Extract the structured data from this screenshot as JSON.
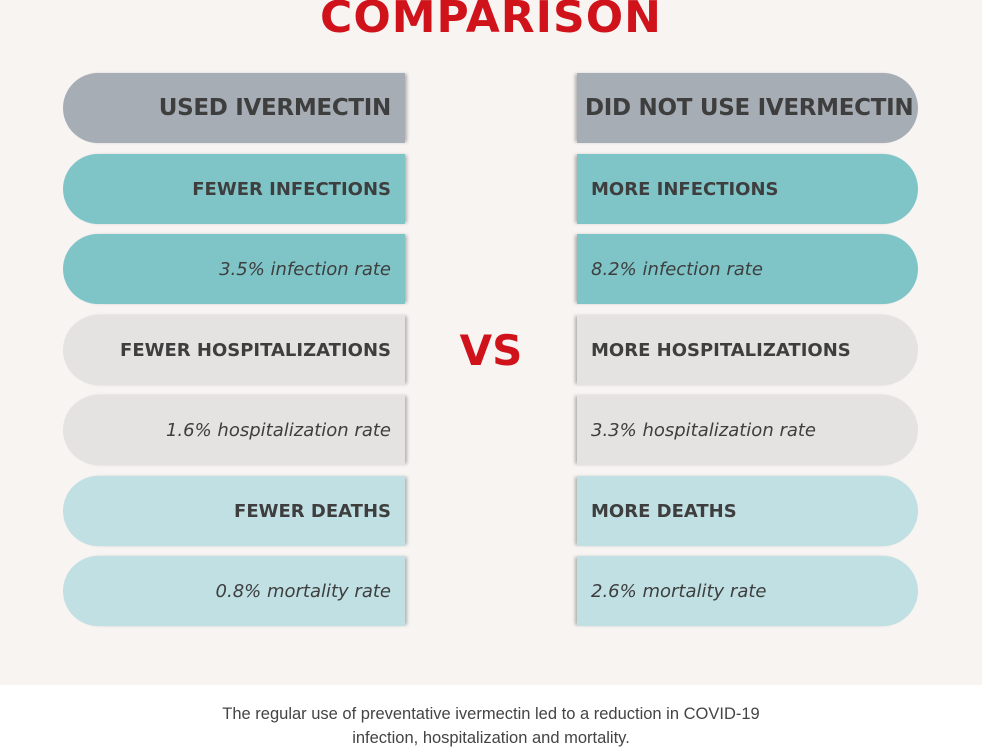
{
  "title": "COMPARISON",
  "vs_label": "VS",
  "headers": {
    "left": "USED IVERMECTIN",
    "right": "DID NOT USE IVERMECTIN"
  },
  "rows": [
    {
      "left_label": "FEWER INFECTIONS",
      "left_value": "3.5% infection rate",
      "right_label": "MORE INFECTIONS",
      "right_value": "8.2% infection rate",
      "color": "#7fc5c8"
    },
    {
      "left_label": "FEWER HOSPITALIZATIONS",
      "left_value": "1.6% hospitalization rate",
      "right_label": "MORE HOSPITALIZATIONS",
      "right_value": "3.3% hospitalization rate",
      "color": "#e4e3e1"
    },
    {
      "left_label": "FEWER DEATHS",
      "left_value": "0.8% mortality rate",
      "right_label": "MORE DEATHS",
      "right_value": "2.6% mortality rate",
      "color": "#c1e0e4"
    }
  ],
  "caption": {
    "line1": "The regular use of preventative ivermectin led to a reduction in COVID-19",
    "line2": "infection, hospitalization and mortality."
  },
  "colors": {
    "accent_red": "#d0121b",
    "header_gray": "#a6adb4",
    "teal": "#7fc5c8",
    "light_gray": "#e4e3e1",
    "light_blue": "#c1e0e4",
    "panel_background": "#f7f4f2",
    "text_dark": "#3e3e3e"
  }
}
